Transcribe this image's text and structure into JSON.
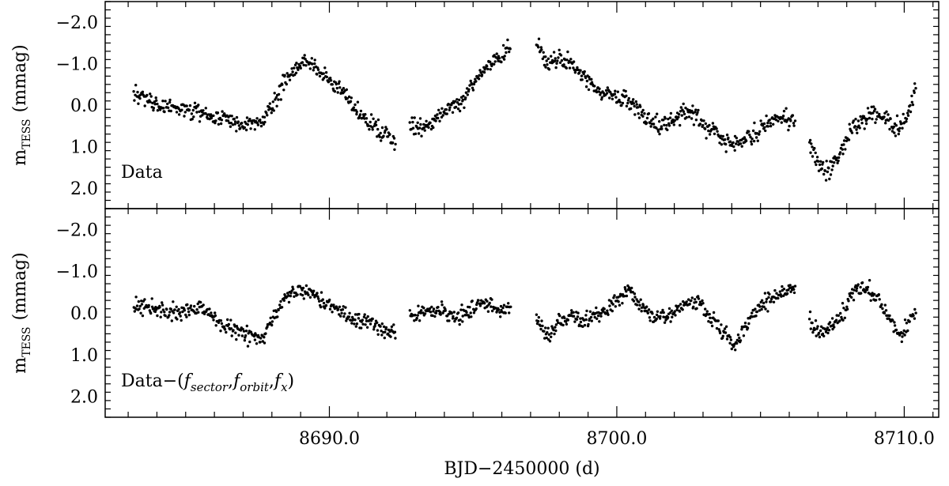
{
  "chart_data": {
    "type": "scatter",
    "xlabel": "BJD−2450000 (d)",
    "xlim": [
      8682.2,
      8711.2
    ],
    "x_ticks": [
      8690.0,
      8700.0,
      8710.0
    ],
    "x_tick_labels": [
      "8690.0",
      "8700.0",
      "8710.0"
    ],
    "x_minor_step": 1,
    "panels": [
      {
        "id": "data",
        "label": "Data",
        "ylabel_main": "m",
        "ylabel_sub": "TESS",
        "ylabel_unit": "(mmag)",
        "ylim": [
          2.5,
          -2.5
        ],
        "inverted": true,
        "y_ticks": [
          -2.0,
          -1.0,
          0.0,
          1.0,
          2.0
        ],
        "y_tick_labels": [
          "−2.0",
          "−1.0",
          "0.0",
          "1.0",
          "2.0"
        ],
        "y_minor_step": 0.2,
        "segments": [
          {
            "x0": 8683.2,
            "x1": 8692.3,
            "points": [
              [
                8683.2,
                -0.3
              ],
              [
                8684.0,
                0.0
              ],
              [
                8684.8,
                0.1
              ],
              [
                8685.6,
                0.2
              ],
              [
                8686.3,
                0.3
              ],
              [
                8687.0,
                0.5
              ],
              [
                8687.7,
                0.4
              ],
              [
                8688.0,
                0.0
              ],
              [
                8688.3,
                -0.4
              ],
              [
                8688.8,
                -0.9
              ],
              [
                8689.2,
                -1.1
              ],
              [
                8689.6,
                -0.8
              ],
              [
                8690.0,
                -0.6
              ],
              [
                8690.5,
                -0.3
              ],
              [
                8691.0,
                0.2
              ],
              [
                8691.6,
                0.5
              ],
              [
                8692.3,
                0.9
              ]
            ],
            "scatter": 0.2
          },
          {
            "x0": 8692.8,
            "x1": 8696.3,
            "points": [
              [
                8692.8,
                0.5
              ],
              [
                8693.2,
                0.6
              ],
              [
                8693.6,
                0.4
              ],
              [
                8694.0,
                0.1
              ],
              [
                8694.5,
                0.0
              ],
              [
                8694.9,
                -0.4
              ],
              [
                8695.3,
                -0.8
              ],
              [
                8695.8,
                -1.1
              ],
              [
                8696.3,
                -1.4
              ]
            ],
            "scatter": 0.2
          },
          {
            "x0": 8697.2,
            "x1": 8706.2,
            "points": [
              [
                8697.2,
                -1.5
              ],
              [
                8697.6,
                -1.0
              ],
              [
                8698.0,
                -1.2
              ],
              [
                8698.5,
                -0.9
              ],
              [
                8699.0,
                -0.6
              ],
              [
                8699.5,
                -0.3
              ],
              [
                8700.0,
                -0.2
              ],
              [
                8700.5,
                -0.1
              ],
              [
                8701.0,
                0.3
              ],
              [
                8701.5,
                0.5
              ],
              [
                8702.0,
                0.3
              ],
              [
                8702.5,
                0.1
              ],
              [
                8703.0,
                0.5
              ],
              [
                8703.5,
                0.7
              ],
              [
                8704.0,
                1.0
              ],
              [
                8704.5,
                0.8
              ],
              [
                8705.0,
                0.6
              ],
              [
                8705.5,
                0.3
              ],
              [
                8706.2,
                0.4
              ]
            ],
            "scatter": 0.2
          },
          {
            "x0": 8706.7,
            "x1": 8710.4,
            "points": [
              [
                8706.7,
                0.9
              ],
              [
                8707.0,
                1.4
              ],
              [
                8707.3,
                1.6
              ],
              [
                8707.7,
                1.3
              ],
              [
                8708.1,
                0.6
              ],
              [
                8708.5,
                0.4
              ],
              [
                8708.9,
                0.2
              ],
              [
                8709.3,
                0.3
              ],
              [
                8709.7,
                0.6
              ],
              [
                8710.0,
                0.4
              ],
              [
                8710.4,
                -0.4
              ]
            ],
            "scatter": 0.2
          }
        ]
      },
      {
        "id": "residual",
        "label": "Data−(f_sector, f_orbit, f_x)",
        "ylabel_main": "m",
        "ylabel_sub": "TESS",
        "ylabel_unit": "(mmag)",
        "ylim": [
          2.5,
          -2.5
        ],
        "inverted": true,
        "y_ticks": [
          -2.0,
          -1.0,
          0.0,
          1.0,
          2.0
        ],
        "y_tick_labels": [
          "−2.0",
          "−1.0",
          "0.0",
          "1.0",
          "2.0"
        ],
        "y_minor_step": 0.2,
        "segments": [
          {
            "x0": 8683.2,
            "x1": 8692.3,
            "points": [
              [
                8683.2,
                -0.2
              ],
              [
                8684.0,
                -0.1
              ],
              [
                8684.8,
                0.0
              ],
              [
                8685.6,
                -0.1
              ],
              [
                8686.3,
                0.3
              ],
              [
                8687.0,
                0.5
              ],
              [
                8687.7,
                0.6
              ],
              [
                8688.0,
                0.2
              ],
              [
                8688.5,
                -0.4
              ],
              [
                8689.0,
                -0.6
              ],
              [
                8689.5,
                -0.4
              ],
              [
                8690.0,
                -0.2
              ],
              [
                8690.5,
                0.0
              ],
              [
                8691.0,
                0.2
              ],
              [
                8691.6,
                0.3
              ],
              [
                8692.3,
                0.5
              ]
            ],
            "scatter": 0.18
          },
          {
            "x0": 8692.8,
            "x1": 8696.3,
            "points": [
              [
                8692.8,
                0.1
              ],
              [
                8693.3,
                0.0
              ],
              [
                8693.8,
                -0.1
              ],
              [
                8694.3,
                0.1
              ],
              [
                8694.8,
                0.0
              ],
              [
                8695.3,
                -0.3
              ],
              [
                8695.8,
                -0.1
              ],
              [
                8696.3,
                -0.1
              ]
            ],
            "scatter": 0.18
          },
          {
            "x0": 8697.2,
            "x1": 8706.2,
            "points": [
              [
                8697.2,
                0.1
              ],
              [
                8697.6,
                0.6
              ],
              [
                8698.0,
                0.2
              ],
              [
                8698.5,
                0.1
              ],
              [
                8699.0,
                0.2
              ],
              [
                8699.5,
                0.0
              ],
              [
                8700.0,
                -0.3
              ],
              [
                8700.4,
                -0.6
              ],
              [
                8700.8,
                -0.2
              ],
              [
                8701.3,
                0.1
              ],
              [
                8701.8,
                0.1
              ],
              [
                8702.3,
                -0.2
              ],
              [
                8702.8,
                -0.3
              ],
              [
                8703.3,
                0.1
              ],
              [
                8703.8,
                0.5
              ],
              [
                8704.1,
                0.8
              ],
              [
                8704.5,
                0.3
              ],
              [
                8705.0,
                -0.2
              ],
              [
                8705.5,
                -0.4
              ],
              [
                8706.0,
                -0.5
              ]
            ],
            "scatter": 0.18
          },
          {
            "x0": 8706.7,
            "x1": 8710.4,
            "points": [
              [
                8706.7,
                0.2
              ],
              [
                8707.1,
                0.5
              ],
              [
                8707.5,
                0.3
              ],
              [
                8707.9,
                0.0
              ],
              [
                8708.2,
                -0.5
              ],
              [
                8708.7,
                -0.6
              ],
              [
                8709.1,
                -0.3
              ],
              [
                8709.5,
                0.2
              ],
              [
                8709.9,
                0.5
              ],
              [
                8710.4,
                0.0
              ]
            ],
            "scatter": 0.18
          }
        ]
      }
    ]
  }
}
